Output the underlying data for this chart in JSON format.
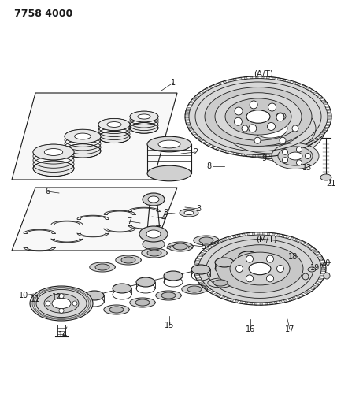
{
  "title": "7758 4000",
  "bg_color": "#ffffff",
  "lc": "#1a1a1a",
  "fig_width": 4.28,
  "fig_height": 5.33,
  "dpi": 100
}
